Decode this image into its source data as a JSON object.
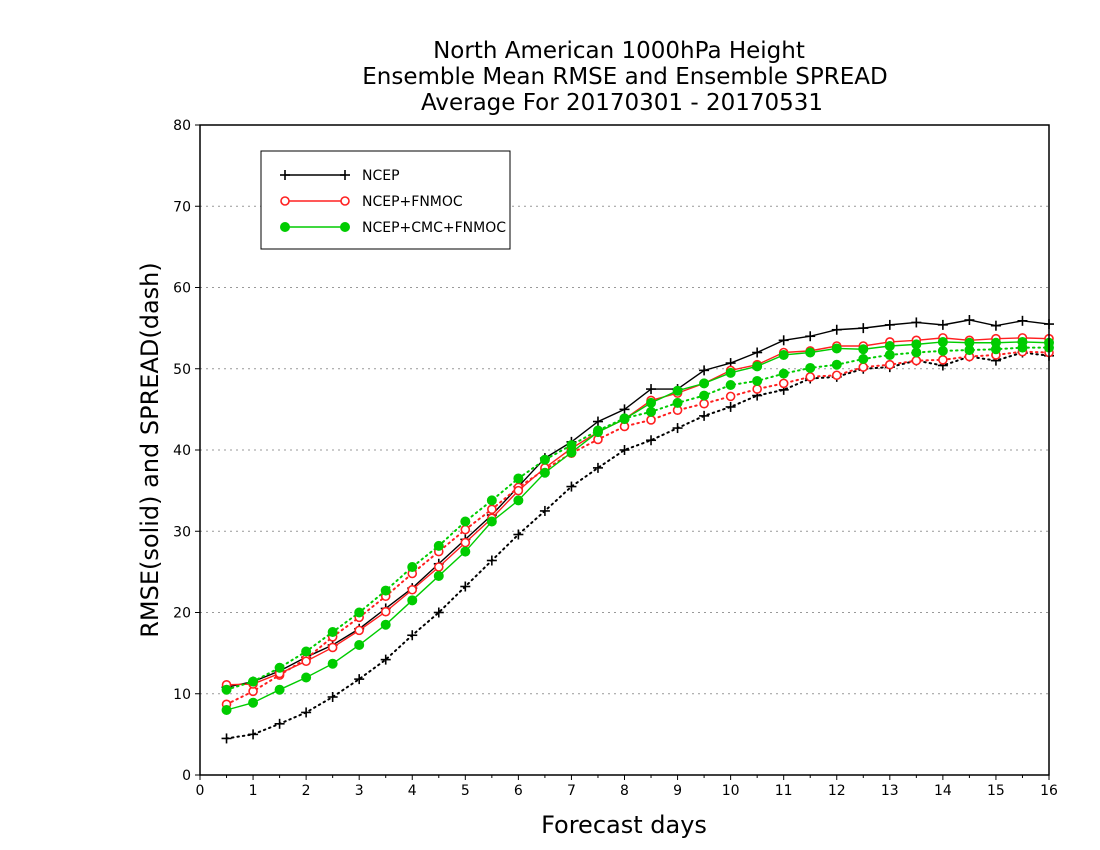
{
  "chart_data": {
    "type": "line",
    "title": [
      "North American 1000hPa Height",
      "Ensemble Mean RMSE and Ensemble SPREAD",
      "Average For 20170301 - 20170531"
    ],
    "xlabel": "Forecast days",
    "ylabel": "RMSE(solid) and SPREAD(dash)",
    "xlim": [
      0,
      16
    ],
    "ylim": [
      0,
      80
    ],
    "xticks": [
      0,
      1,
      2,
      3,
      4,
      5,
      6,
      7,
      8,
      9,
      10,
      11,
      12,
      13,
      14,
      15,
      16
    ],
    "yticks": [
      0,
      10,
      20,
      30,
      40,
      50,
      60,
      70,
      80
    ],
    "grid": "horizontal-dotted",
    "legend_position": "top-left",
    "x": [
      0.5,
      1,
      1.5,
      2,
      2.5,
      3,
      3.5,
      4,
      4.5,
      5,
      5.5,
      6,
      6.5,
      7,
      7.5,
      8,
      8.5,
      9,
      9.5,
      10,
      10.5,
      11,
      11.5,
      12,
      12.5,
      13,
      13.5,
      14,
      14.5,
      15,
      15.5,
      16
    ],
    "series": [
      {
        "name": "NCEP",
        "color": "#000000",
        "marker": "plus",
        "rmse": [
          10.8,
          11.5,
          12.8,
          14.5,
          16.0,
          18.0,
          20.5,
          23.0,
          26.0,
          29.0,
          32.0,
          35.5,
          39.0,
          41.0,
          43.5,
          45.0,
          47.5,
          47.5,
          49.8,
          50.7,
          52.0,
          53.5,
          54.0,
          54.8,
          55.0,
          55.4,
          55.7,
          55.4,
          56.0,
          55.3,
          55.9,
          55.5
        ],
        "spread": [
          4.5,
          5.0,
          6.3,
          7.7,
          9.6,
          11.8,
          14.2,
          17.2,
          20.0,
          23.2,
          26.4,
          29.6,
          32.5,
          35.5,
          37.8,
          40.0,
          41.2,
          42.7,
          44.2,
          45.3,
          46.7,
          47.4,
          48.8,
          49.0,
          50.0,
          50.2,
          51.0,
          50.4,
          51.5,
          51.0,
          52.0,
          51.6
        ]
      },
      {
        "name": "NCEP+FNMOC",
        "color": "#ff2020",
        "marker": "open-circle",
        "rmse": [
          11.1,
          11.2,
          12.5,
          14.0,
          15.7,
          17.8,
          20.1,
          22.8,
          25.6,
          28.6,
          31.6,
          35.0,
          37.8,
          40.2,
          42.2,
          43.8,
          46.1,
          47.0,
          48.2,
          49.8,
          50.5,
          52.0,
          52.2,
          52.8,
          52.8,
          53.3,
          53.5,
          53.8,
          53.5,
          53.7,
          53.8,
          53.7
        ],
        "spread": [
          8.7,
          10.3,
          12.3,
          14.3,
          17.0,
          19.4,
          22.0,
          24.8,
          27.5,
          30.2,
          32.7,
          35.4,
          37.6,
          39.6,
          41.3,
          42.9,
          43.7,
          44.9,
          45.7,
          46.6,
          47.5,
          48.2,
          49.0,
          49.2,
          50.2,
          50.5,
          51.0,
          51.1,
          51.5,
          51.7,
          52.1,
          52.0
        ]
      },
      {
        "name": "NCEP+CMC+FNMOC",
        "color": "#00cc00",
        "marker": "filled-circle",
        "rmse": [
          8.0,
          8.9,
          10.5,
          12.0,
          13.7,
          16.0,
          18.5,
          21.5,
          24.5,
          27.5,
          31.2,
          33.8,
          37.2,
          39.7,
          42.2,
          43.8,
          45.8,
          47.3,
          48.2,
          49.5,
          50.3,
          51.7,
          52.0,
          52.5,
          52.4,
          52.8,
          53.0,
          53.3,
          53.2,
          53.2,
          53.3,
          53.2
        ],
        "spread": [
          10.5,
          11.5,
          13.2,
          15.2,
          17.6,
          20.0,
          22.7,
          25.6,
          28.2,
          31.2,
          33.8,
          36.5,
          38.8,
          40.6,
          42.4,
          43.9,
          44.7,
          45.8,
          46.7,
          48.0,
          48.5,
          49.4,
          50.1,
          50.5,
          51.2,
          51.7,
          52.0,
          52.2,
          52.3,
          52.4,
          52.6,
          52.6
        ]
      }
    ]
  }
}
